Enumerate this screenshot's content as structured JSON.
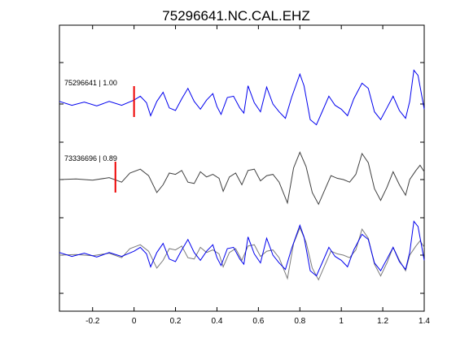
{
  "chart_data": {
    "type": "line",
    "title": "75296641.NC.CAL.EHZ",
    "xlabel": "",
    "ylabel": "",
    "xlim": [
      -0.36,
      1.4
    ],
    "x_ticks": [
      -0.2,
      0,
      0.2,
      0.4,
      0.6,
      0.8,
      1.0,
      1.2,
      1.4
    ],
    "x_tick_labels": [
      "-0.2",
      "0",
      "0.2",
      "0.4",
      "0.6",
      "0.8",
      "1",
      "1.2",
      "1.4"
    ],
    "grid": false,
    "legend": "none",
    "colors": {
      "template": "#0000ee",
      "match": "#404040",
      "pick": "#ee0000",
      "overlay_match": "#7a7a7a"
    },
    "traces": [
      {
        "label": "75296641 | 1.00",
        "color": "#0000ee",
        "pick_time": 0.0,
        "samples": [
          [
            -0.36,
            0.2
          ],
          [
            -0.3,
            -0.1
          ],
          [
            -0.24,
            0.15
          ],
          [
            -0.18,
            -0.15
          ],
          [
            -0.12,
            0.2
          ],
          [
            -0.06,
            -0.1
          ],
          [
            0.0,
            0.3
          ],
          [
            0.03,
            0.6
          ],
          [
            0.06,
            0.1
          ],
          [
            0.08,
            -0.9
          ],
          [
            0.11,
            0.2
          ],
          [
            0.14,
            0.9
          ],
          [
            0.17,
            -0.3
          ],
          [
            0.2,
            -0.5
          ],
          [
            0.23,
            0.4
          ],
          [
            0.26,
            1.2
          ],
          [
            0.29,
            0.2
          ],
          [
            0.32,
            -0.4
          ],
          [
            0.35,
            0.3
          ],
          [
            0.38,
            0.8
          ],
          [
            0.4,
            -0.2
          ],
          [
            0.42,
            -0.8
          ],
          [
            0.45,
            0.5
          ],
          [
            0.48,
            0.6
          ],
          [
            0.51,
            -0.3
          ],
          [
            0.53,
            -0.7
          ],
          [
            0.55,
            1.4
          ],
          [
            0.58,
            0.1
          ],
          [
            0.61,
            -0.6
          ],
          [
            0.64,
            1.3
          ],
          [
            0.67,
            0.0
          ],
          [
            0.7,
            -0.6
          ],
          [
            0.73,
            -1.1
          ],
          [
            0.76,
            0.5
          ],
          [
            0.8,
            2.3
          ],
          [
            0.82,
            1.4
          ],
          [
            0.85,
            -1.2
          ],
          [
            0.88,
            -1.6
          ],
          [
            0.91,
            -0.5
          ],
          [
            0.94,
            0.6
          ],
          [
            0.97,
            -0.1
          ],
          [
            1.0,
            -0.4
          ],
          [
            1.03,
            -0.9
          ],
          [
            1.06,
            0.4
          ],
          [
            1.1,
            1.6
          ],
          [
            1.13,
            1.2
          ],
          [
            1.16,
            -0.6
          ],
          [
            1.19,
            -1.2
          ],
          [
            1.22,
            -0.3
          ],
          [
            1.25,
            0.6
          ],
          [
            1.28,
            -0.5
          ],
          [
            1.31,
            -1.1
          ],
          [
            1.33,
            0.2
          ],
          [
            1.35,
            2.6
          ],
          [
            1.37,
            2.2
          ],
          [
            1.4,
            -0.4
          ]
        ]
      },
      {
        "label": "73336696 | 0.89",
        "color": "#404040",
        "pick_time": -0.09,
        "samples": [
          [
            -0.36,
            0.0
          ],
          [
            -0.28,
            0.05
          ],
          [
            -0.2,
            -0.05
          ],
          [
            -0.12,
            0.15
          ],
          [
            -0.06,
            -0.2
          ],
          [
            -0.02,
            0.5
          ],
          [
            0.03,
            0.8
          ],
          [
            0.07,
            0.3
          ],
          [
            0.11,
            -1.0
          ],
          [
            0.14,
            -0.4
          ],
          [
            0.17,
            0.5
          ],
          [
            0.2,
            0.4
          ],
          [
            0.23,
            0.7
          ],
          [
            0.26,
            -0.2
          ],
          [
            0.29,
            -0.3
          ],
          [
            0.32,
            0.6
          ],
          [
            0.35,
            0.2
          ],
          [
            0.38,
            0.4
          ],
          [
            0.41,
            0.1
          ],
          [
            0.43,
            -0.9
          ],
          [
            0.46,
            0.2
          ],
          [
            0.49,
            0.5
          ],
          [
            0.52,
            -0.4
          ],
          [
            0.55,
            0.7
          ],
          [
            0.58,
            0.8
          ],
          [
            0.61,
            -0.1
          ],
          [
            0.64,
            0.3
          ],
          [
            0.67,
            0.4
          ],
          [
            0.7,
            -0.2
          ],
          [
            0.74,
            -1.8
          ],
          [
            0.77,
            0.9
          ],
          [
            0.8,
            2.1
          ],
          [
            0.83,
            1.0
          ],
          [
            0.86,
            -1.0
          ],
          [
            0.89,
            -1.9
          ],
          [
            0.92,
            -0.8
          ],
          [
            0.95,
            0.3
          ],
          [
            0.98,
            0.1
          ],
          [
            1.01,
            0.0
          ],
          [
            1.04,
            -0.2
          ],
          [
            1.07,
            0.4
          ],
          [
            1.1,
            2.0
          ],
          [
            1.13,
            1.3
          ],
          [
            1.16,
            -0.7
          ],
          [
            1.19,
            -1.6
          ],
          [
            1.22,
            -0.6
          ],
          [
            1.25,
            0.6
          ],
          [
            1.28,
            -0.4
          ],
          [
            1.31,
            -1.2
          ],
          [
            1.33,
            0.0
          ],
          [
            1.36,
            0.7
          ],
          [
            1.38,
            1.1
          ],
          [
            1.4,
            0.6
          ]
        ]
      }
    ]
  }
}
